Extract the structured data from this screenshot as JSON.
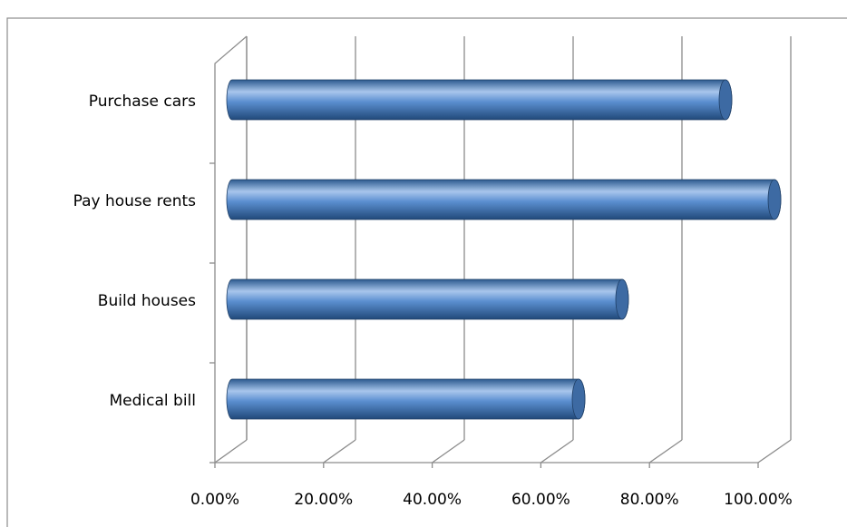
{
  "chart_data": {
    "type": "bar",
    "orientation": "horizontal",
    "style": "3d-cylinder",
    "categories": [
      "Purchase cars",
      "Pay house rents",
      "Build houses",
      "Medical bill"
    ],
    "values": [
      91,
      100,
      72,
      64
    ],
    "color": "#4f81bd",
    "xlim": [
      0,
      100
    ],
    "xticks": [
      {
        "value": 0,
        "label": "0.00%"
      },
      {
        "value": 20,
        "label": "20.00%"
      },
      {
        "value": 40,
        "label": "40.00%"
      },
      {
        "value": 60,
        "label": "60.00%"
      },
      {
        "value": 80,
        "label": "80.00%"
      },
      {
        "value": 100,
        "label": "100.00%"
      }
    ],
    "grid": true
  }
}
